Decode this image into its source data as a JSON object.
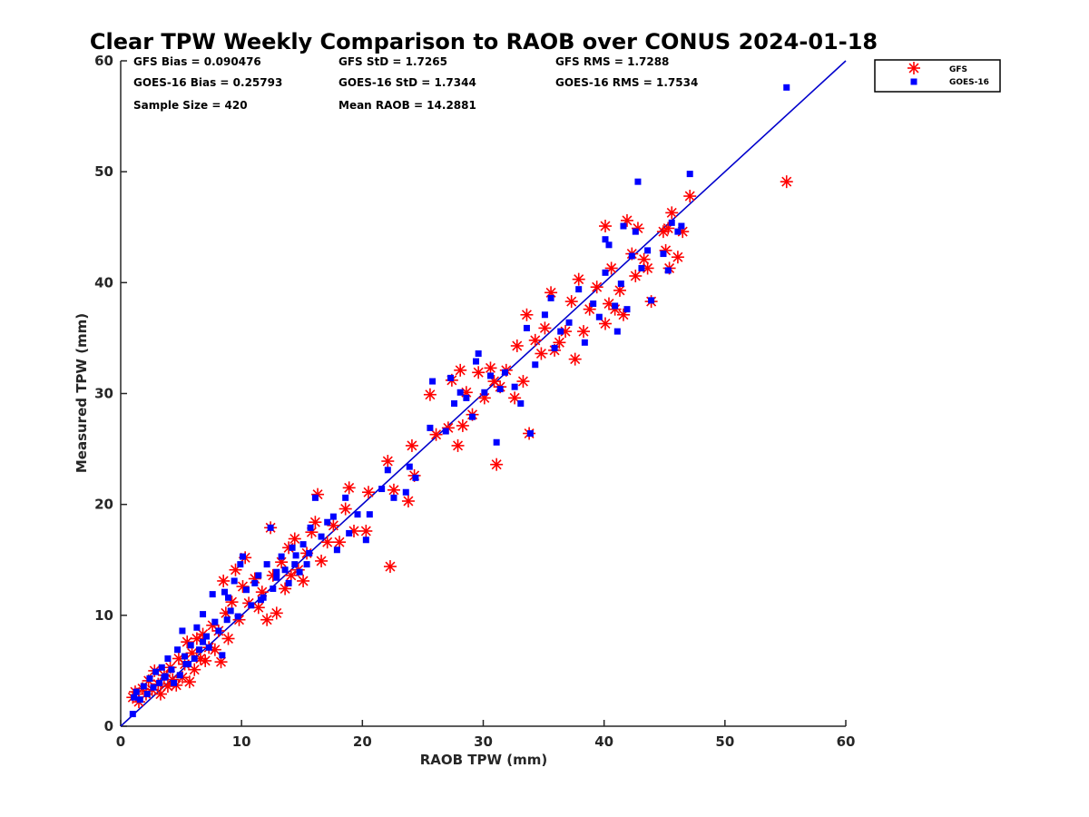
{
  "chart_data": {
    "type": "scatter",
    "title": "Clear TPW Weekly Comparison to RAOB over CONUS 2024-01-18",
    "xlabel": "RAOB TPW (mm)",
    "ylabel": "Measured TPW (mm)",
    "xlim": [
      0,
      60
    ],
    "ylim": [
      0,
      60
    ],
    "xticks": [
      "0",
      "10",
      "20",
      "30",
      "40",
      "50",
      "60"
    ],
    "yticks": [
      "0",
      "10",
      "20",
      "30",
      "40",
      "50",
      "60"
    ],
    "grid": false,
    "legend_position": "top-right, outside plot",
    "reference_line": {
      "x": [
        0,
        60
      ],
      "y": [
        0,
        60
      ],
      "color": "#0000cc"
    },
    "stats": {
      "gfs_bias": "GFS Bias = 0.090476",
      "gfs_std": "GFS StD = 1.7265",
      "gfs_rms": "GFS RMS = 1.7288",
      "goes_bias": "GOES-16 Bias = 0.25793",
      "goes_std": "GOES-16 StD = 1.7344",
      "goes_rms": "GOES-16 RMS = 1.7534",
      "sample_size": "Sample Size = 420",
      "mean_raob": "Mean RAOB = 14.2881"
    },
    "series": [
      {
        "name": "GFS",
        "marker": "asterisk",
        "color": "#ff0000",
        "points": [
          [
            1,
            2.6
          ],
          [
            1.2,
            3.1
          ],
          [
            1.5,
            2.2
          ],
          [
            1.8,
            3.4
          ],
          [
            2.1,
            2.9
          ],
          [
            2.3,
            4.1
          ],
          [
            2.6,
            3.3
          ],
          [
            2.8,
            5.0
          ],
          [
            3.1,
            3.8
          ],
          [
            3.3,
            2.9
          ],
          [
            3.6,
            4.6
          ],
          [
            3.9,
            3.6
          ],
          [
            4.1,
            5.3
          ],
          [
            4.3,
            4.2
          ],
          [
            4.6,
            3.7
          ],
          [
            4.8,
            6.1
          ],
          [
            5.1,
            4.4
          ],
          [
            5.3,
            5.6
          ],
          [
            5.5,
            7.6
          ],
          [
            5.7,
            4.0
          ],
          [
            5.9,
            6.6
          ],
          [
            6.1,
            5.1
          ],
          [
            6.3,
            7.9
          ],
          [
            6.6,
            6.1
          ],
          [
            6.8,
            8.3
          ],
          [
            7.0,
            5.9
          ],
          [
            7.3,
            7.1
          ],
          [
            7.6,
            9.1
          ],
          [
            7.8,
            6.9
          ],
          [
            8.1,
            8.6
          ],
          [
            8.3,
            5.8
          ],
          [
            8.5,
            13.1
          ],
          [
            8.7,
            10.2
          ],
          [
            8.9,
            7.9
          ],
          [
            9.2,
            11.2
          ],
          [
            9.5,
            14.1
          ],
          [
            9.8,
            9.6
          ],
          [
            10.1,
            12.6
          ],
          [
            10.3,
            15.2
          ],
          [
            10.6,
            11.1
          ],
          [
            11.1,
            13.3
          ],
          [
            11.4,
            10.7
          ],
          [
            11.7,
            12.1
          ],
          [
            12.1,
            9.6
          ],
          [
            12.4,
            17.9
          ],
          [
            12.6,
            13.6
          ],
          [
            12.9,
            10.2
          ],
          [
            13.3,
            14.8
          ],
          [
            13.6,
            12.4
          ],
          [
            13.9,
            16.1
          ],
          [
            14.1,
            13.6
          ],
          [
            14.4,
            16.9
          ],
          [
            14.7,
            14.1
          ],
          [
            15.1,
            13.1
          ],
          [
            15.4,
            15.6
          ],
          [
            15.8,
            17.5
          ],
          [
            16.1,
            18.4
          ],
          [
            16.3,
            20.9
          ],
          [
            16.6,
            14.9
          ],
          [
            17.1,
            16.6
          ],
          [
            17.6,
            18.1
          ],
          [
            18.1,
            16.6
          ],
          [
            18.6,
            19.6
          ],
          [
            18.9,
            21.5
          ],
          [
            19.3,
            17.6
          ],
          [
            20.3,
            17.6
          ],
          [
            20.5,
            21.1
          ],
          [
            22.1,
            23.9
          ],
          [
            22.3,
            14.4
          ],
          [
            22.6,
            21.3
          ],
          [
            23.8,
            20.3
          ],
          [
            24.1,
            25.3
          ],
          [
            24.3,
            22.6
          ],
          [
            25.6,
            29.9
          ],
          [
            26.1,
            26.3
          ],
          [
            27.1,
            26.9
          ],
          [
            27.4,
            31.2
          ],
          [
            27.9,
            25.3
          ],
          [
            28.1,
            32.1
          ],
          [
            28.3,
            27.1
          ],
          [
            28.6,
            30.1
          ],
          [
            29.1,
            28.1
          ],
          [
            29.6,
            31.9
          ],
          [
            30.1,
            29.6
          ],
          [
            30.6,
            32.3
          ],
          [
            30.9,
            31.1
          ],
          [
            31.1,
            23.6
          ],
          [
            31.4,
            30.6
          ],
          [
            31.9,
            32.1
          ],
          [
            32.6,
            29.6
          ],
          [
            32.8,
            34.3
          ],
          [
            33.3,
            31.1
          ],
          [
            33.6,
            37.1
          ],
          [
            33.8,
            26.4
          ],
          [
            34.3,
            34.8
          ],
          [
            34.8,
            33.6
          ],
          [
            35.1,
            35.9
          ],
          [
            35.6,
            39.1
          ],
          [
            35.9,
            33.9
          ],
          [
            36.3,
            34.6
          ],
          [
            36.8,
            35.6
          ],
          [
            37.3,
            38.3
          ],
          [
            37.6,
            33.1
          ],
          [
            37.9,
            40.3
          ],
          [
            38.3,
            35.6
          ],
          [
            38.8,
            37.6
          ],
          [
            39.4,
            39.6
          ],
          [
            40.1,
            36.3
          ],
          [
            40.1,
            45.1
          ],
          [
            40.4,
            38.1
          ],
          [
            40.6,
            41.3
          ],
          [
            40.9,
            37.6
          ],
          [
            41.3,
            39.3
          ],
          [
            41.6,
            37.1
          ],
          [
            41.9,
            45.6
          ],
          [
            42.3,
            42.6
          ],
          [
            42.6,
            40.6
          ],
          [
            42.8,
            44.9
          ],
          [
            43.3,
            42.1
          ],
          [
            43.6,
            41.3
          ],
          [
            43.9,
            38.3
          ],
          [
            45.1,
            42.9
          ],
          [
            45.3,
            44.9
          ],
          [
            45.6,
            46.3
          ],
          [
            45.4,
            41.3
          ],
          [
            46.1,
            42.3
          ],
          [
            46.5,
            44.6
          ],
          [
            47.1,
            47.8
          ],
          [
            55.1,
            49.1
          ],
          [
            44.9,
            44.6
          ]
        ]
      },
      {
        "name": "GOES-16",
        "marker": "square",
        "color": "#0000ff",
        "points": [
          [
            1,
            1.1
          ],
          [
            1.1,
            2.6
          ],
          [
            1.3,
            3.1
          ],
          [
            1.6,
            2.4
          ],
          [
            1.9,
            3.6
          ],
          [
            2.2,
            2.9
          ],
          [
            2.4,
            4.3
          ],
          [
            2.7,
            3.5
          ],
          [
            2.9,
            4.9
          ],
          [
            3.2,
            3.9
          ],
          [
            3.4,
            5.3
          ],
          [
            3.7,
            4.5
          ],
          [
            3.9,
            6.1
          ],
          [
            4.2,
            5.1
          ],
          [
            4.4,
            3.9
          ],
          [
            4.7,
            6.9
          ],
          [
            4.9,
            4.6
          ],
          [
            5.1,
            8.6
          ],
          [
            5.3,
            6.3
          ],
          [
            5.6,
            5.6
          ],
          [
            5.8,
            7.3
          ],
          [
            6.1,
            6.1
          ],
          [
            6.3,
            8.9
          ],
          [
            6.5,
            6.9
          ],
          [
            6.8,
            10.1
          ],
          [
            7.1,
            8.1
          ],
          [
            7.3,
            7.1
          ],
          [
            7.6,
            11.9
          ],
          [
            7.8,
            9.4
          ],
          [
            8.1,
            8.6
          ],
          [
            8.4,
            6.4
          ],
          [
            8.6,
            12.1
          ],
          [
            8.9,
            11.6
          ],
          [
            9.1,
            10.4
          ],
          [
            9.4,
            13.1
          ],
          [
            9.7,
            9.9
          ],
          [
            9.9,
            14.6
          ],
          [
            10.1,
            15.3
          ],
          [
            10.4,
            12.3
          ],
          [
            10.8,
            10.9
          ],
          [
            11.1,
            12.9
          ],
          [
            11.4,
            13.6
          ],
          [
            11.8,
            11.6
          ],
          [
            12.1,
            14.6
          ],
          [
            12.4,
            17.9
          ],
          [
            12.6,
            12.4
          ],
          [
            12.9,
            13.9
          ],
          [
            13.3,
            15.3
          ],
          [
            13.6,
            14.1
          ],
          [
            13.9,
            12.9
          ],
          [
            14.2,
            16.1
          ],
          [
            14.5,
            15.4
          ],
          [
            14.8,
            13.9
          ],
          [
            15.1,
            16.4
          ],
          [
            15.4,
            14.6
          ],
          [
            15.7,
            17.9
          ],
          [
            16.1,
            20.6
          ],
          [
            16.6,
            17.1
          ],
          [
            17.1,
            18.4
          ],
          [
            17.6,
            18.9
          ],
          [
            17.9,
            15.9
          ],
          [
            18.6,
            20.6
          ],
          [
            18.9,
            17.4
          ],
          [
            19.6,
            19.1
          ],
          [
            20.3,
            16.8
          ],
          [
            20.6,
            19.1
          ],
          [
            21.6,
            21.4
          ],
          [
            22.1,
            23.1
          ],
          [
            22.6,
            20.6
          ],
          [
            23.6,
            21.1
          ],
          [
            23.9,
            23.4
          ],
          [
            24.4,
            22.4
          ],
          [
            25.6,
            26.9
          ],
          [
            25.8,
            31.1
          ],
          [
            26.9,
            26.6
          ],
          [
            27.3,
            31.4
          ],
          [
            27.6,
            29.1
          ],
          [
            28.1,
            30.1
          ],
          [
            28.6,
            29.6
          ],
          [
            29.1,
            27.9
          ],
          [
            29.4,
            32.9
          ],
          [
            29.6,
            33.6
          ],
          [
            30.1,
            30.1
          ],
          [
            30.6,
            31.6
          ],
          [
            31.1,
            25.6
          ],
          [
            31.4,
            30.4
          ],
          [
            31.8,
            31.9
          ],
          [
            32.6,
            30.6
          ],
          [
            33.1,
            29.1
          ],
          [
            33.6,
            35.9
          ],
          [
            33.9,
            26.4
          ],
          [
            34.3,
            32.6
          ],
          [
            35.1,
            37.1
          ],
          [
            35.6,
            38.6
          ],
          [
            35.9,
            34.1
          ],
          [
            36.4,
            35.6
          ],
          [
            37.1,
            36.4
          ],
          [
            37.9,
            39.4
          ],
          [
            38.4,
            34.6
          ],
          [
            39.1,
            38.1
          ],
          [
            39.6,
            36.9
          ],
          [
            40.1,
            40.9
          ],
          [
            40.1,
            43.9
          ],
          [
            40.4,
            43.4
          ],
          [
            40.9,
            37.9
          ],
          [
            41.1,
            35.6
          ],
          [
            41.4,
            39.9
          ],
          [
            41.6,
            45.1
          ],
          [
            41.9,
            37.6
          ],
          [
            42.3,
            42.4
          ],
          [
            42.6,
            44.6
          ],
          [
            42.8,
            49.1
          ],
          [
            43.1,
            41.3
          ],
          [
            43.6,
            42.9
          ],
          [
            43.9,
            38.4
          ],
          [
            44.9,
            42.6
          ],
          [
            45.3,
            41.1
          ],
          [
            45.6,
            45.4
          ],
          [
            46.1,
            44.6
          ],
          [
            46.4,
            45.1
          ],
          [
            47.1,
            49.8
          ],
          [
            55.1,
            57.6
          ],
          [
            15.6,
            15.6
          ],
          [
            5.4,
            5.6
          ],
          [
            3.6,
            4.4
          ],
          [
            6.8,
            7.6
          ],
          [
            8.8,
            9.6
          ],
          [
            12.9,
            13.4
          ],
          [
            14.4,
            14.6
          ],
          [
            11.6,
            11.4
          ]
        ]
      }
    ]
  }
}
